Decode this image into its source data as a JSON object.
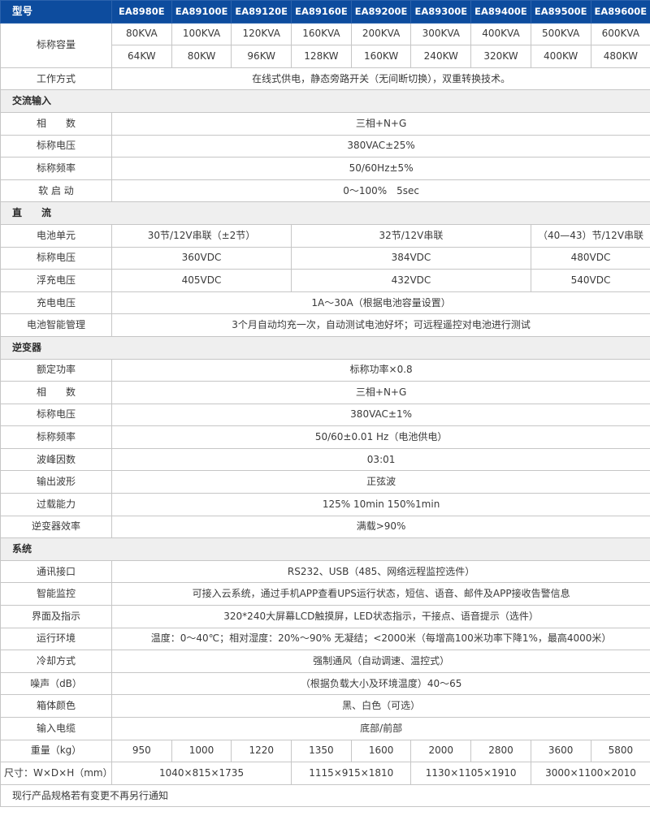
{
  "colors": {
    "header_bg": "#0d4c9e",
    "header_text": "#ffffff",
    "section_bg": "#efefef",
    "border": "#c6c6c6",
    "text": "#3a3a3a"
  },
  "header": {
    "label": "型号",
    "models": [
      "EA8980E",
      "EA89100E",
      "EA89120E",
      "EA89160E",
      "EA89200E",
      "EA89300E",
      "EA89400E",
      "EA89500E",
      "EA89600E"
    ]
  },
  "capacity": {
    "label": "标称容量",
    "kva": [
      "80KVA",
      "100KVA",
      "120KVA",
      "160KVA",
      "200KVA",
      "300KVA",
      "400KVA",
      "500KVA",
      "600KVA"
    ],
    "kw": [
      "64KW",
      "80KW",
      "96KW",
      "128KW",
      "160KW",
      "240KW",
      "320KW",
      "400KW",
      "480KW"
    ]
  },
  "work_mode": {
    "label": "工作方式",
    "value": "在线式供电，静态旁路开关（无间断切换），双重转换技术。"
  },
  "ac_input": {
    "title": "交流输入",
    "rows": [
      {
        "label": "相　　数",
        "value": "三相+N+G"
      },
      {
        "label": "标称电压",
        "value": "380VAC±25%"
      },
      {
        "label": "标称频率",
        "value": "50/60Hz±5%"
      },
      {
        "label": "软 启 动",
        "value": "0～100%　5sec"
      }
    ]
  },
  "dc": {
    "title": "直　　流",
    "battery_unit": {
      "label": "电池单元",
      "values": [
        "30节/12V串联（±2节）",
        "32节/12V串联",
        "（40—43）节/12V串联"
      ]
    },
    "nominal_voltage": {
      "label": "标称电压",
      "values": [
        "360VDC",
        "384VDC",
        "480VDC"
      ]
    },
    "float_voltage": {
      "label": "浮充电压",
      "values": [
        "405VDC",
        "432VDC",
        "540VDC"
      ]
    },
    "charge_voltage": {
      "label": "充电电压",
      "value": "1A～30A（根据电池容量设置）"
    },
    "battery_mgmt": {
      "label": "电池智能管理",
      "value": "3个月自动均充一次，自动测试电池好坏；可远程遥控对电池进行测试"
    }
  },
  "inverter": {
    "title": "逆变器",
    "rows": [
      {
        "label": "额定功率",
        "value": "标称功率×0.8"
      },
      {
        "label": "相　　数",
        "value": "三相+N+G"
      },
      {
        "label": "标称电压",
        "value": "380VAC±1%"
      },
      {
        "label": "标称频率",
        "value": "50/60±0.01 Hz（电池供电）"
      },
      {
        "label": "波峰因数",
        "value": "03:01"
      },
      {
        "label": "输出波形",
        "value": "正弦波"
      },
      {
        "label": "过载能力",
        "value": "125% 10min 150%1min"
      },
      {
        "label": "逆变器效率",
        "value": "满载>90%"
      }
    ]
  },
  "system": {
    "title": "系统",
    "rows": [
      {
        "label": "通讯接口",
        "value": "RS232、USB（485、网络远程监控选件）"
      },
      {
        "label": "智能监控",
        "value": "可接入云系统，通过手机APP查看UPS运行状态，短信、语音、邮件及APP接收告警信息"
      },
      {
        "label": "界面及指示",
        "value": "320*240大屏幕LCD触摸屏，LED状态指示，干接点、语音提示（选件）"
      },
      {
        "label": "运行环境",
        "value": "温度：0～40℃；相对湿度：20%～90% 无凝结；<2000米（每增高100米功率下降1%，最高4000米）"
      },
      {
        "label": "冷却方式",
        "value": "强制通风（自动调速、温控式）"
      },
      {
        "label": "噪声（dB）",
        "value": "（根据负载大小及环境温度）40～65"
      },
      {
        "label": "箱体颜色",
        "value": "黑、白色（可选）"
      },
      {
        "label": "输入电缆",
        "value": "底部/前部"
      }
    ],
    "weight": {
      "label": "重量（kg）",
      "values": [
        "950",
        "1000",
        "1220",
        "1350",
        "1600",
        "2000",
        "2800",
        "3600",
        "5800"
      ]
    },
    "dimensions": {
      "label": "尺寸：W×D×H（mm）",
      "values": [
        "1040×815×1735",
        "1115×915×1810",
        "1130×1105×1910",
        "3000×1100×2010"
      ]
    }
  },
  "footer": {
    "note": "现行产品规格若有变更不再另行通知"
  }
}
